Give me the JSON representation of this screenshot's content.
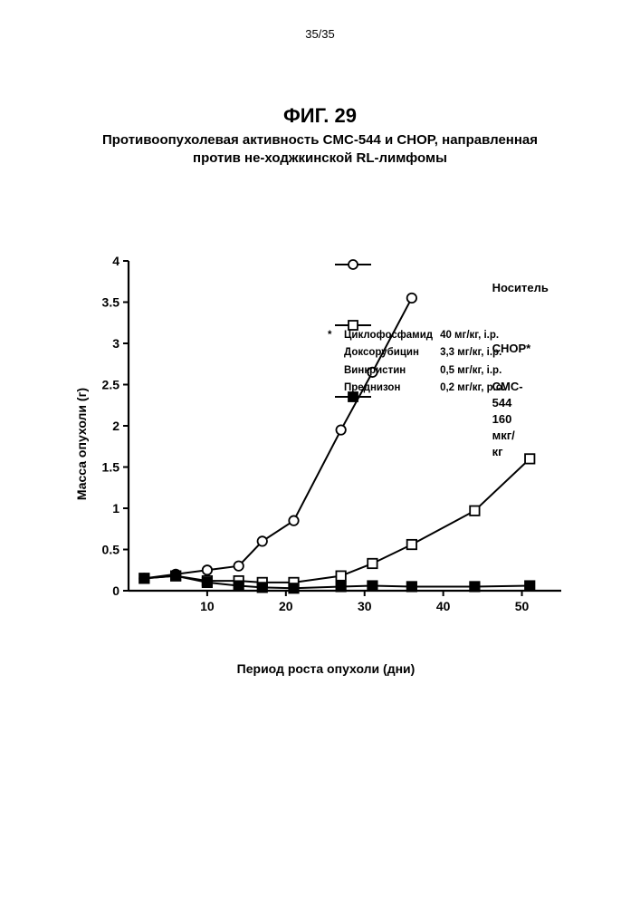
{
  "page_number": "35/35",
  "figure_title": "ФИГ. 29",
  "subtitle_line1": "Противоопухолевая активность CMC-544 и CHOP, направленная",
  "subtitle_line2": "против не-ходжкинской RL-лимфомы",
  "chart": {
    "type": "line",
    "background_color": "#ffffff",
    "axis_color": "#000000",
    "axis_line_width": 2.2,
    "xlabel": "Период роста опухоли (дни)",
    "ylabel": "Масса опухоли (г)",
    "xlim": [
      0,
      55
    ],
    "ylim": [
      0,
      4
    ],
    "xticks": [
      10,
      20,
      30,
      40,
      50
    ],
    "yticks": [
      0,
      0.5,
      1,
      1.5,
      2,
      2.5,
      3,
      3.5,
      4
    ],
    "label_fontsize": 14,
    "tick_fontsize": 14,
    "marker_size": 5.2,
    "line_width": 2.0,
    "series": [
      {
        "name": "Носитель",
        "marker": "circle-open",
        "color": "#000000",
        "fill": "#ffffff",
        "x": [
          2,
          6,
          10,
          14,
          17,
          21,
          27,
          31,
          36
        ],
        "y": [
          0.15,
          0.2,
          0.25,
          0.3,
          0.6,
          0.85,
          1.95,
          2.65,
          3.55
        ]
      },
      {
        "name": "CHOP*",
        "marker": "square-open",
        "color": "#000000",
        "fill": "#ffffff",
        "x": [
          2,
          6,
          10,
          14,
          17,
          21,
          27,
          31,
          36,
          44,
          51
        ],
        "y": [
          0.15,
          0.18,
          0.12,
          0.12,
          0.1,
          0.1,
          0.18,
          0.33,
          0.56,
          0.97,
          1.6
        ]
      },
      {
        "name": "CMC-544 160 мкг/кг",
        "marker": "square-filled",
        "color": "#000000",
        "fill": "#000000",
        "x": [
          2,
          6,
          10,
          14,
          17,
          21,
          27,
          31,
          36,
          44,
          51
        ],
        "y": [
          0.15,
          0.18,
          0.1,
          0.06,
          0.04,
          0.03,
          0.05,
          0.06,
          0.05,
          0.05,
          0.06
        ]
      }
    ]
  },
  "legend_title_not_shown": "",
  "footnote": {
    "lead": "* ",
    "rows": [
      {
        "drug": "Циклофосфамид",
        "dose": "40 мг/кг, i.p."
      },
      {
        "drug": "Доксорубицин",
        "dose": "3,3 мг/кг, i.p."
      },
      {
        "drug": "Винкристин",
        "dose": "0,5 мг/кг, i.p."
      },
      {
        "drug": "Преднизон",
        "dose": "0,2 мг/кг, p.o."
      }
    ]
  },
  "legend_items": [
    {
      "label": "Носитель",
      "marker": "circle-open"
    },
    {
      "label": "CHOP*",
      "marker": "square-open"
    },
    {
      "label": "CMC-544 160 мкг/кг",
      "marker": "square-filled"
    }
  ]
}
